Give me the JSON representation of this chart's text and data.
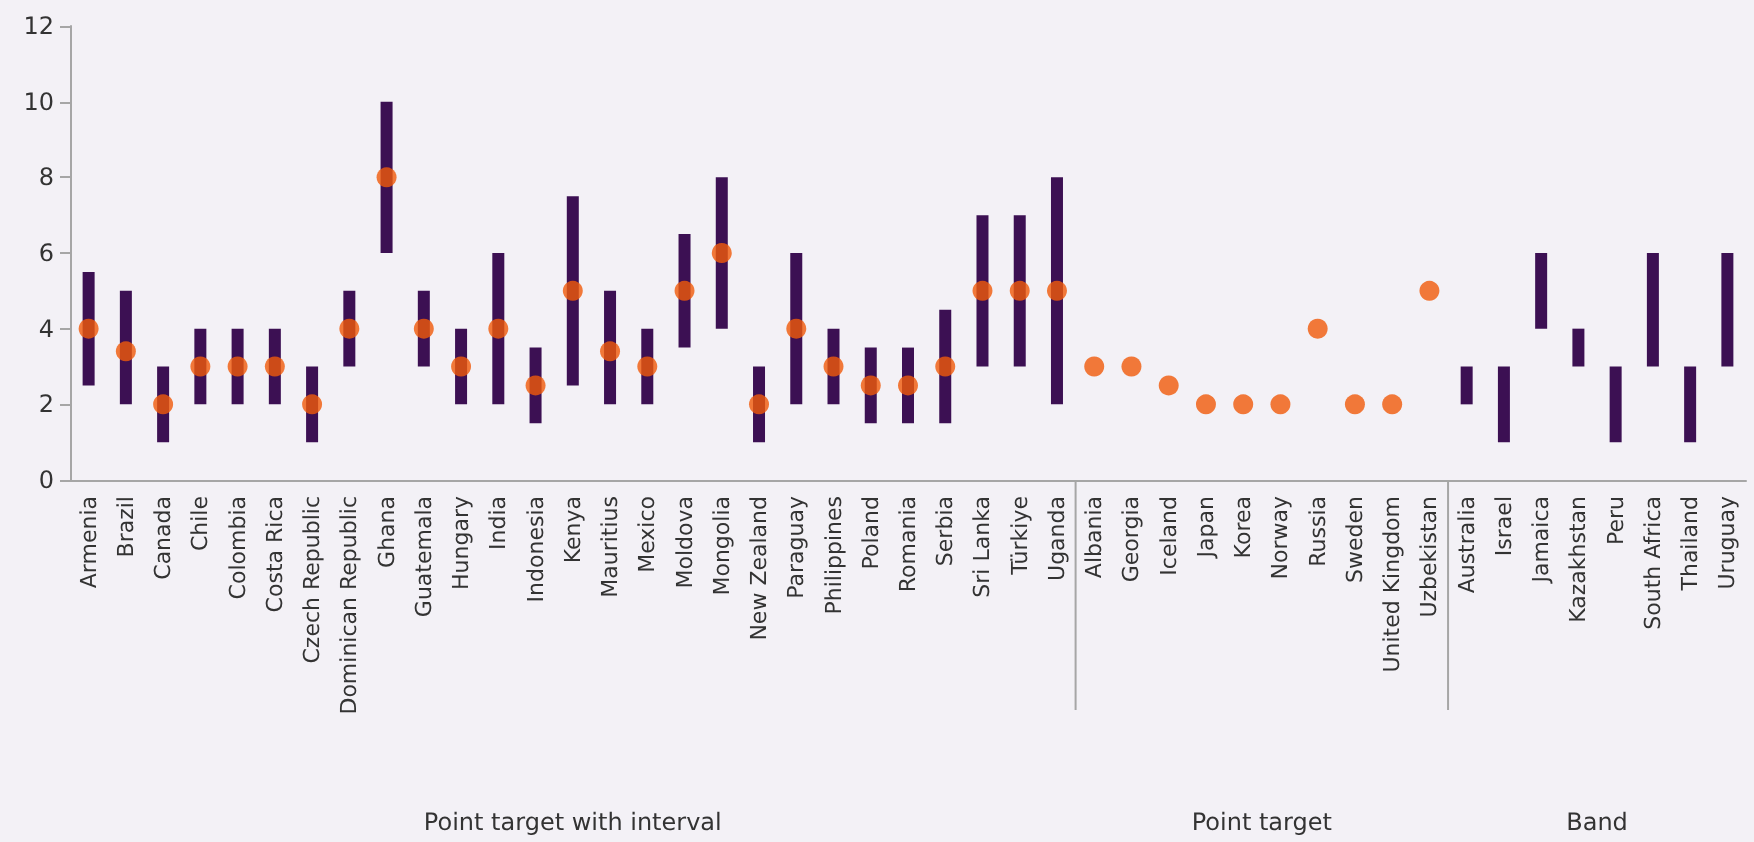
{
  "chart_data": {
    "type": "bar",
    "categories": [
      "Armenia",
      "Brazil",
      "Canada",
      "Chile",
      "Colombia",
      "Costa Rica",
      "Czech Republic",
      "Dominican Republic",
      "Ghana",
      "Guatemala",
      "Hungary",
      "India",
      "Indonesia",
      "Kenya",
      "Mauritius",
      "Mexico",
      "Moldova",
      "Mongolia",
      "New Zealand",
      "Paraguay",
      "Philippines",
      "Poland",
      "Romania",
      "Serbia",
      "Sri Lanka",
      "Türkiye",
      "Uganda",
      "Albania",
      "Georgia",
      "Iceland",
      "Japan",
      "Korea",
      "Norway",
      "Russia",
      "Sweden",
      "United Kingdom",
      "Uzbekistan",
      "Australia",
      "Israel",
      "Jamaica",
      "Kazakhstan",
      "Peru",
      "South Africa",
      "Thailand",
      "Uruguay"
    ],
    "series": [
      {
        "color": "#3c1053",
        "base": [
          2.5,
          2,
          1,
          2,
          2,
          2,
          1,
          3,
          6,
          3,
          2,
          2,
          1.5,
          2.5,
          2,
          2,
          3.5,
          4,
          1,
          2,
          2,
          1.5,
          1.5,
          1.5,
          3,
          3,
          2,
          null,
          null,
          null,
          null,
          null,
          null,
          null,
          null,
          null,
          null,
          2,
          1,
          4,
          3,
          1,
          3,
          1,
          3
        ],
        "values": [
          3,
          3,
          2,
          2,
          2,
          2,
          2,
          2,
          4,
          2,
          2,
          4,
          2,
          5,
          3,
          2,
          3,
          4,
          2,
          4,
          2,
          2,
          2,
          3,
          4,
          4,
          6,
          null,
          null,
          null,
          null,
          null,
          null,
          null,
          null,
          null,
          null,
          1,
          2,
          2,
          1,
          2,
          3,
          2,
          3
        ]
      },
      {
        "type": "scatter",
        "color": "#f05a0a",
        "marker": "circle",
        "values": [
          4,
          3.4,
          2,
          3,
          3,
          3,
          2,
          4,
          8,
          4,
          3,
          4,
          2.5,
          5,
          3.4,
          3,
          5,
          6,
          2,
          4,
          3,
          2.5,
          2.5,
          3,
          5,
          5,
          5,
          3,
          3,
          2.5,
          2,
          2,
          2,
          4,
          2,
          2,
          5,
          null,
          null,
          null,
          null,
          null,
          null,
          null,
          null
        ]
      }
    ],
    "ylim": [
      0,
      12
    ],
    "yticks": [
      0,
      2,
      4,
      6,
      8,
      10,
      12
    ],
    "grid": false,
    "annotations": [
      "Point target with interval",
      "Point target",
      "Band"
    ]
  }
}
